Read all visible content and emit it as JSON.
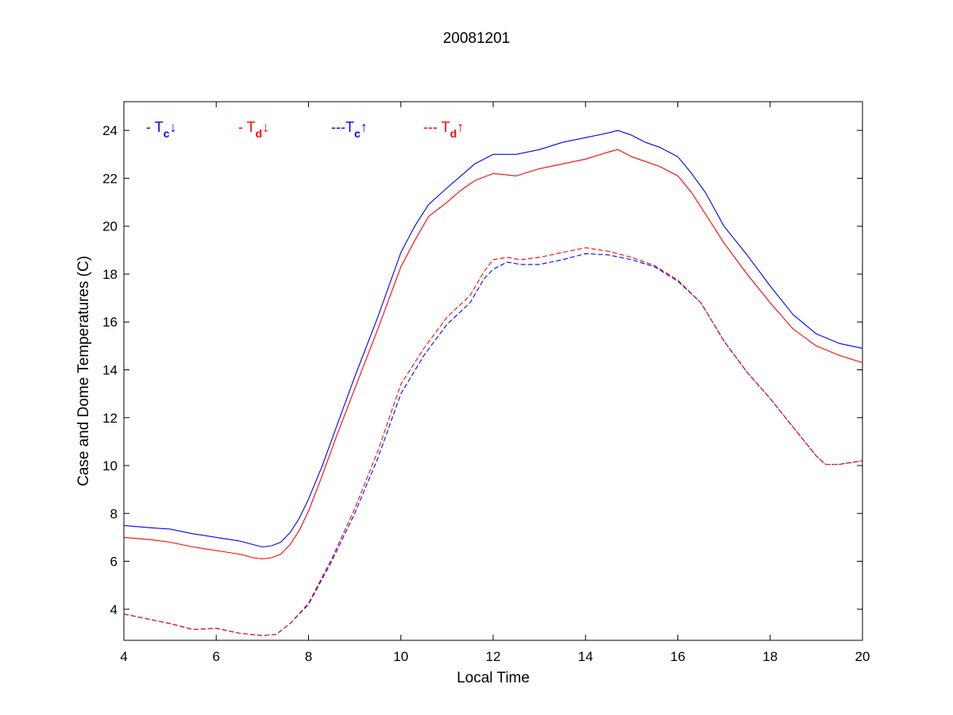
{
  "chart_data": {
    "type": "line",
    "title": "20081201",
    "xlabel": "Local Time",
    "ylabel": "Case and Dome Temperatures (C)",
    "xlim": [
      4,
      20
    ],
    "ylim": [
      2.7,
      25.2
    ],
    "xticks": [
      4,
      6,
      8,
      10,
      12,
      14,
      16,
      18,
      20
    ],
    "yticks": [
      4,
      6,
      8,
      10,
      12,
      14,
      16,
      18,
      20,
      22,
      24
    ],
    "grid": false,
    "legend_position": "top-left",
    "series": [
      {
        "key": "tc_down",
        "legend_prefix": "- T",
        "legend_sub": "c",
        "legend_arrow": "↓",
        "color": "#0000ff",
        "dash": "solid",
        "x": [
          4.0,
          4.3,
          4.6,
          5.0,
          5.5,
          6.0,
          6.5,
          6.8,
          7.0,
          7.2,
          7.4,
          7.6,
          7.8,
          8.0,
          8.3,
          8.6,
          9.0,
          9.5,
          10.0,
          10.3,
          10.6,
          11.0,
          11.3,
          11.6,
          12.0,
          12.5,
          13.0,
          13.5,
          14.0,
          14.5,
          14.7,
          15.0,
          15.3,
          15.6,
          16.0,
          16.3,
          16.6,
          17.0,
          17.5,
          18.0,
          18.5,
          19.0,
          19.5,
          20.0
        ],
        "y": [
          7.5,
          7.45,
          7.4,
          7.35,
          7.15,
          7.0,
          6.85,
          6.7,
          6.6,
          6.65,
          6.8,
          7.2,
          7.8,
          8.6,
          10.0,
          11.6,
          13.7,
          16.2,
          18.9,
          20.0,
          20.9,
          21.6,
          22.1,
          22.6,
          23.0,
          23.0,
          23.2,
          23.5,
          23.7,
          23.9,
          24.0,
          23.8,
          23.5,
          23.3,
          22.9,
          22.2,
          21.4,
          20.0,
          18.8,
          17.5,
          16.3,
          15.5,
          15.1,
          14.9
        ]
      },
      {
        "key": "td_down",
        "legend_prefix": "- T",
        "legend_sub": "d",
        "legend_arrow": "↓",
        "color": "#ff0000",
        "dash": "solid",
        "x": [
          4.0,
          4.3,
          4.6,
          5.0,
          5.5,
          6.0,
          6.5,
          6.8,
          7.0,
          7.2,
          7.4,
          7.6,
          7.8,
          8.0,
          8.3,
          8.6,
          9.0,
          9.5,
          10.0,
          10.3,
          10.6,
          11.0,
          11.3,
          11.6,
          12.0,
          12.5,
          13.0,
          13.5,
          14.0,
          14.5,
          14.7,
          15.0,
          15.3,
          15.6,
          16.0,
          16.3,
          16.6,
          17.0,
          17.5,
          18.0,
          18.5,
          19.0,
          19.5,
          20.0
        ],
        "y": [
          7.0,
          6.95,
          6.9,
          6.8,
          6.6,
          6.45,
          6.3,
          6.15,
          6.1,
          6.15,
          6.3,
          6.7,
          7.3,
          8.1,
          9.6,
          11.2,
          13.2,
          15.7,
          18.3,
          19.4,
          20.4,
          21.0,
          21.5,
          21.9,
          22.2,
          22.1,
          22.4,
          22.6,
          22.8,
          23.1,
          23.2,
          22.9,
          22.7,
          22.5,
          22.1,
          21.4,
          20.5,
          19.3,
          18.0,
          16.8,
          15.7,
          15.0,
          14.6,
          14.3
        ]
      },
      {
        "key": "tc_up",
        "legend_prefix": "---T",
        "legend_sub": "c",
        "legend_arrow": "↑",
        "color": "#0000ff",
        "dash": "dashed",
        "x": [
          4.0,
          4.5,
          5.0,
          5.5,
          6.0,
          6.5,
          7.0,
          7.3,
          7.6,
          8.0,
          8.5,
          9.0,
          9.5,
          10.0,
          10.5,
          11.0,
          11.5,
          11.8,
          12.0,
          12.3,
          12.6,
          13.0,
          13.5,
          14.0,
          14.5,
          15.0,
          15.5,
          16.0,
          16.5,
          17.0,
          17.5,
          18.0,
          18.5,
          19.0,
          19.2,
          19.5,
          20.0
        ],
        "y": [
          3.8,
          3.6,
          3.4,
          3.15,
          3.2,
          3.0,
          2.9,
          2.95,
          3.4,
          4.2,
          6.0,
          8.0,
          10.3,
          13.0,
          14.6,
          15.9,
          16.8,
          17.8,
          18.2,
          18.5,
          18.4,
          18.4,
          18.6,
          18.85,
          18.8,
          18.6,
          18.3,
          17.7,
          16.8,
          15.2,
          13.9,
          12.8,
          11.6,
          10.4,
          10.05,
          10.05,
          10.2
        ]
      },
      {
        "key": "td_up",
        "legend_prefix": "--- T",
        "legend_sub": "d",
        "legend_arrow": "↑",
        "color": "#ff0000",
        "dash": "dashed",
        "x": [
          4.0,
          4.5,
          5.0,
          5.5,
          6.0,
          6.5,
          7.0,
          7.3,
          7.6,
          8.0,
          8.5,
          9.0,
          9.5,
          10.0,
          10.5,
          11.0,
          11.5,
          11.8,
          12.0,
          12.3,
          12.6,
          13.0,
          13.5,
          14.0,
          14.5,
          15.0,
          15.5,
          16.0,
          16.5,
          17.0,
          17.5,
          18.0,
          18.5,
          19.0,
          19.2,
          19.5,
          20.0
        ],
        "y": [
          3.8,
          3.6,
          3.4,
          3.15,
          3.2,
          3.0,
          2.9,
          2.95,
          3.4,
          4.25,
          6.1,
          8.2,
          10.6,
          13.4,
          14.9,
          16.2,
          17.1,
          18.1,
          18.6,
          18.7,
          18.6,
          18.7,
          18.9,
          19.1,
          18.95,
          18.7,
          18.35,
          17.75,
          16.8,
          15.2,
          13.9,
          12.8,
          11.6,
          10.4,
          10.05,
          10.05,
          10.2
        ]
      }
    ]
  }
}
